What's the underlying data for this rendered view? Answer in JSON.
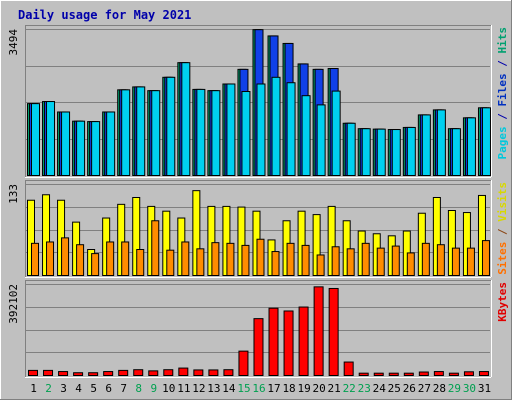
{
  "chart_data": {
    "type": "bar",
    "title": "Daily usage for May 2021",
    "categories": [
      "1",
      "2",
      "3",
      "4",
      "5",
      "6",
      "7",
      "8",
      "9",
      "10",
      "11",
      "12",
      "13",
      "14",
      "15",
      "16",
      "17",
      "18",
      "19",
      "20",
      "21",
      "22",
      "23",
      "24",
      "25",
      "26",
      "27",
      "28",
      "29",
      "30",
      "31"
    ],
    "weekend_categories": [
      "2",
      "8",
      "9",
      "15",
      "16",
      "22",
      "23",
      "29",
      "30"
    ],
    "panels": [
      {
        "id": "hits-files-pages",
        "tick_label": "3494",
        "ymax": 3494,
        "axis_labels": [
          {
            "text": "Pages",
            "color": "#00c8dc"
          },
          {
            "text": " / ",
            "color": "#0000aa"
          },
          {
            "text": "Files",
            "color": "#0030c0"
          },
          {
            "text": " / ",
            "color": "#0000aa"
          },
          {
            "text": "Hits",
            "color": "#00a070"
          }
        ],
        "series": [
          {
            "name": "Hits",
            "color": "#00a070",
            "values": [
              1720,
              1770,
              1520,
              1300,
              1290,
              1520,
              2050,
              2120,
              2030,
              2350,
              2700,
              2060,
              2030,
              2190,
              2540,
              3490,
              3340,
              3160,
              2670,
              2540,
              2560,
              1250,
              1120,
              1110,
              1100,
              1150,
              1450,
              1570,
              1120,
              1380,
              1620
            ]
          },
          {
            "name": "Files",
            "color": "#1040e8",
            "values": [
              1720,
              1770,
              1520,
              1300,
              1290,
              1520,
              2050,
              2120,
              2030,
              2350,
              2700,
              2060,
              2030,
              2190,
              2540,
              3490,
              3340,
              3160,
              2670,
              2540,
              2560,
              1250,
              1120,
              1110,
              1100,
              1150,
              1450,
              1570,
              1120,
              1380,
              1620
            ]
          },
          {
            "name": "Pages",
            "color": "#00d0f0",
            "values": [
              1720,
              1770,
              1520,
              1300,
              1290,
              1520,
              2050,
              2120,
              2030,
              2350,
              2700,
              2060,
              2030,
              2190,
              2010,
              2190,
              2350,
              2220,
              1910,
              1690,
              2020,
              1250,
              1120,
              1110,
              1100,
              1150,
              1450,
              1570,
              1120,
              1380,
              1620
            ]
          }
        ]
      },
      {
        "id": "visits-sites",
        "tick_label": "133",
        "ymax": 133,
        "axis_labels": [
          {
            "text": "Sites",
            "color": "#ff7000"
          },
          {
            "text": " / ",
            "color": "#8b4513"
          },
          {
            "text": "Visits",
            "color": "#d8d800"
          }
        ],
        "series": [
          {
            "name": "Visits",
            "color": "#ffff00",
            "values": [
              110,
              118,
              110,
              78,
              38,
              84,
              104,
              114,
              101,
              94,
              84,
              124,
              101,
              101,
              100,
              94,
              52,
              80,
              94,
              89,
              101,
              80,
              65,
              61,
              58,
              65,
              91,
              114,
              95,
              92,
              117
            ]
          },
          {
            "name": "Sites",
            "color": "#ff8c00",
            "values": [
              47,
              49,
              55,
              45,
              32,
              49,
              49,
              38,
              80,
              37,
              49,
              39,
              48,
              47,
              44,
              53,
              35,
              47,
              44,
              30,
              42,
              39,
              47,
              40,
              43,
              33,
              47,
              45,
              40,
              40,
              51
            ]
          }
        ]
      },
      {
        "id": "kbytes",
        "tick_label": "392102",
        "ymax": 392102,
        "axis_labels": [
          {
            "text": "KBytes",
            "color": "#e00000"
          }
        ],
        "series": [
          {
            "name": "KBytes",
            "color": "#ff0000",
            "values": [
              22000,
              22000,
              17000,
              12000,
              12000,
              17000,
              22000,
              25000,
              20000,
              25000,
              32000,
              24000,
              24000,
              25000,
              105000,
              245000,
              290000,
              278000,
              295000,
              382000,
              375000,
              58000,
              10000,
              10000,
              10000,
              10000,
              15000,
              17000,
              10000,
              16000,
              17000
            ]
          }
        ]
      }
    ]
  }
}
